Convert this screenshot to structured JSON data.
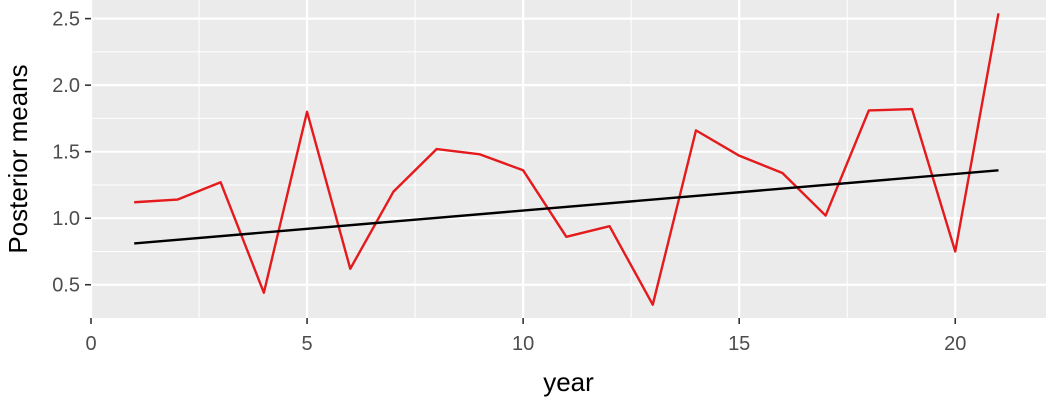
{
  "chart_data": {
    "type": "line",
    "title": "",
    "xlabel": "year",
    "ylabel": "Posterior means",
    "xlim": [
      0,
      22.1
    ],
    "ylim": [
      0.25,
      2.64
    ],
    "x_ticks": [
      0,
      5,
      10,
      15,
      20
    ],
    "y_ticks": [
      0.5,
      1.0,
      1.5,
      2.0,
      2.5
    ],
    "x_tick_labels": [
      "0",
      "5",
      "10",
      "15",
      "20"
    ],
    "y_tick_labels": [
      "0.5",
      "1.0",
      "1.5",
      "2.0",
      "2.5"
    ],
    "grid": true,
    "legend": "none",
    "series": [
      {
        "color": "#e41a1c",
        "x": [
          1,
          2,
          3,
          4,
          5,
          6,
          7,
          8,
          9,
          10,
          11,
          12,
          13,
          14,
          15,
          16,
          17,
          18,
          19,
          20,
          21
        ],
        "y": [
          1.12,
          1.14,
          1.27,
          0.44,
          1.8,
          0.62,
          1.2,
          1.52,
          1.48,
          1.36,
          0.86,
          0.94,
          0.35,
          1.66,
          1.47,
          1.34,
          1.02,
          1.81,
          1.82,
          0.75,
          2.54
        ]
      },
      {
        "color": "#000000",
        "x": [
          1,
          21
        ],
        "y": [
          0.81,
          1.36
        ]
      }
    ]
  }
}
